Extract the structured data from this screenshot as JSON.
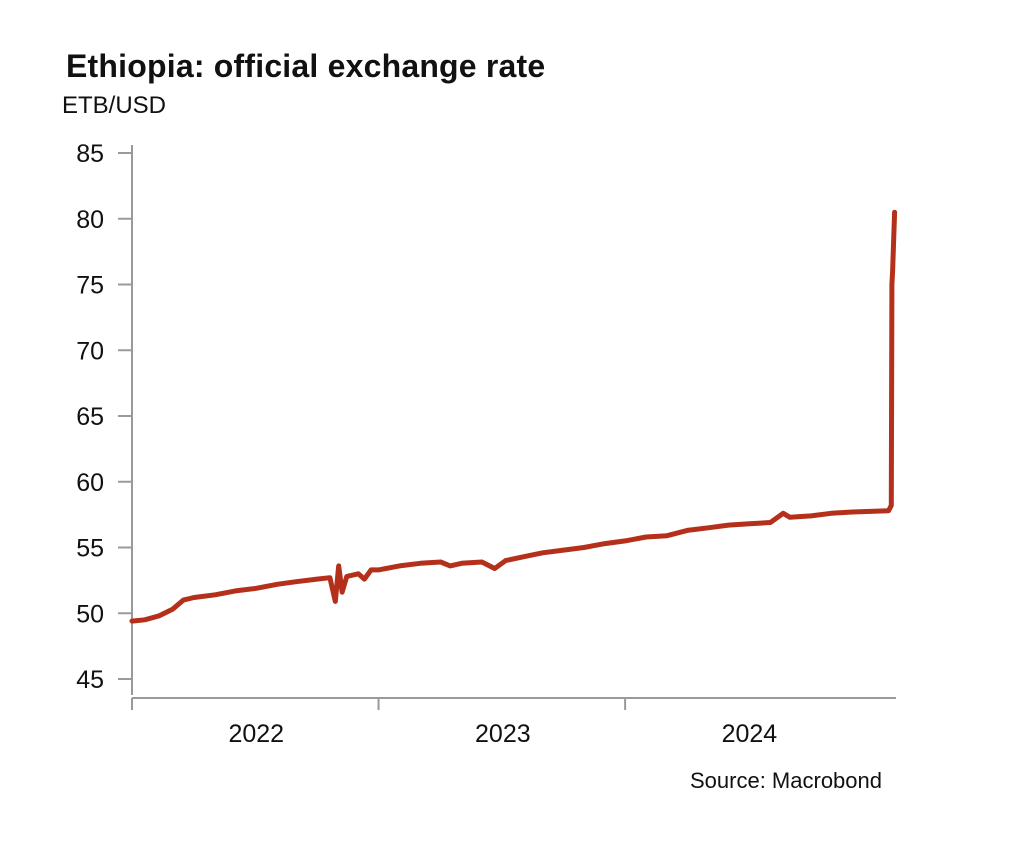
{
  "chart_data": {
    "type": "line",
    "title": "Ethiopia: official exchange rate",
    "ylabel": "ETB/USD",
    "xlabel": "",
    "source": "Source: Macrobond",
    "ylim": [
      45,
      85
    ],
    "yticks": [
      45,
      50,
      55,
      60,
      65,
      70,
      75,
      80,
      85
    ],
    "xlim": [
      "2021-07-01",
      "2024-08-05"
    ],
    "xtick_marks": [
      "2021-07-01",
      "2022-07-01",
      "2023-07-01"
    ],
    "xtick_labels": [
      {
        "label": "2022",
        "at": "2022-01-01"
      },
      {
        "label": "2023",
        "at": "2023-01-01"
      },
      {
        "label": "2024",
        "at": "2024-01-01"
      }
    ],
    "grid": false,
    "legend": "none",
    "series": [
      {
        "color": "#b5301a",
        "points": [
          [
            "2021-07-01",
            49.4
          ],
          [
            "2021-07-20",
            49.5
          ],
          [
            "2021-08-10",
            49.8
          ],
          [
            "2021-08-30",
            50.3
          ],
          [
            "2021-09-15",
            51.0
          ],
          [
            "2021-10-01",
            51.2
          ],
          [
            "2021-11-01",
            51.4
          ],
          [
            "2021-12-01",
            51.7
          ],
          [
            "2022-01-01",
            51.9
          ],
          [
            "2022-02-01",
            52.2
          ],
          [
            "2022-03-01",
            52.4
          ],
          [
            "2022-04-01",
            52.6
          ],
          [
            "2022-04-20",
            52.7
          ],
          [
            "2022-04-28",
            50.9
          ],
          [
            "2022-05-03",
            53.6
          ],
          [
            "2022-05-08",
            51.6
          ],
          [
            "2022-05-15",
            52.8
          ],
          [
            "2022-06-01",
            53.0
          ],
          [
            "2022-06-10",
            52.6
          ],
          [
            "2022-06-20",
            53.3
          ],
          [
            "2022-07-01",
            53.3
          ],
          [
            "2022-08-01",
            53.6
          ],
          [
            "2022-09-01",
            53.8
          ],
          [
            "2022-10-01",
            53.9
          ],
          [
            "2022-10-15",
            53.6
          ],
          [
            "2022-11-01",
            53.8
          ],
          [
            "2022-12-01",
            53.9
          ],
          [
            "2022-12-20",
            53.4
          ],
          [
            "2023-01-05",
            54.0
          ],
          [
            "2023-02-01",
            54.3
          ],
          [
            "2023-03-01",
            54.6
          ],
          [
            "2023-04-01",
            54.8
          ],
          [
            "2023-05-01",
            55.0
          ],
          [
            "2023-06-01",
            55.3
          ],
          [
            "2023-07-01",
            55.5
          ],
          [
            "2023-08-01",
            55.8
          ],
          [
            "2023-09-01",
            55.9
          ],
          [
            "2023-10-01",
            56.3
          ],
          [
            "2023-11-01",
            56.5
          ],
          [
            "2023-12-01",
            56.7
          ],
          [
            "2024-01-01",
            56.8
          ],
          [
            "2024-02-01",
            56.9
          ],
          [
            "2024-02-20",
            57.6
          ],
          [
            "2024-03-01",
            57.3
          ],
          [
            "2024-04-01",
            57.4
          ],
          [
            "2024-05-01",
            57.6
          ],
          [
            "2024-06-01",
            57.7
          ],
          [
            "2024-07-25",
            57.8
          ],
          [
            "2024-07-29",
            58.2
          ],
          [
            "2024-07-30",
            75.0
          ],
          [
            "2024-07-31",
            76.0
          ],
          [
            "2024-08-03",
            80.5
          ]
        ]
      }
    ]
  }
}
